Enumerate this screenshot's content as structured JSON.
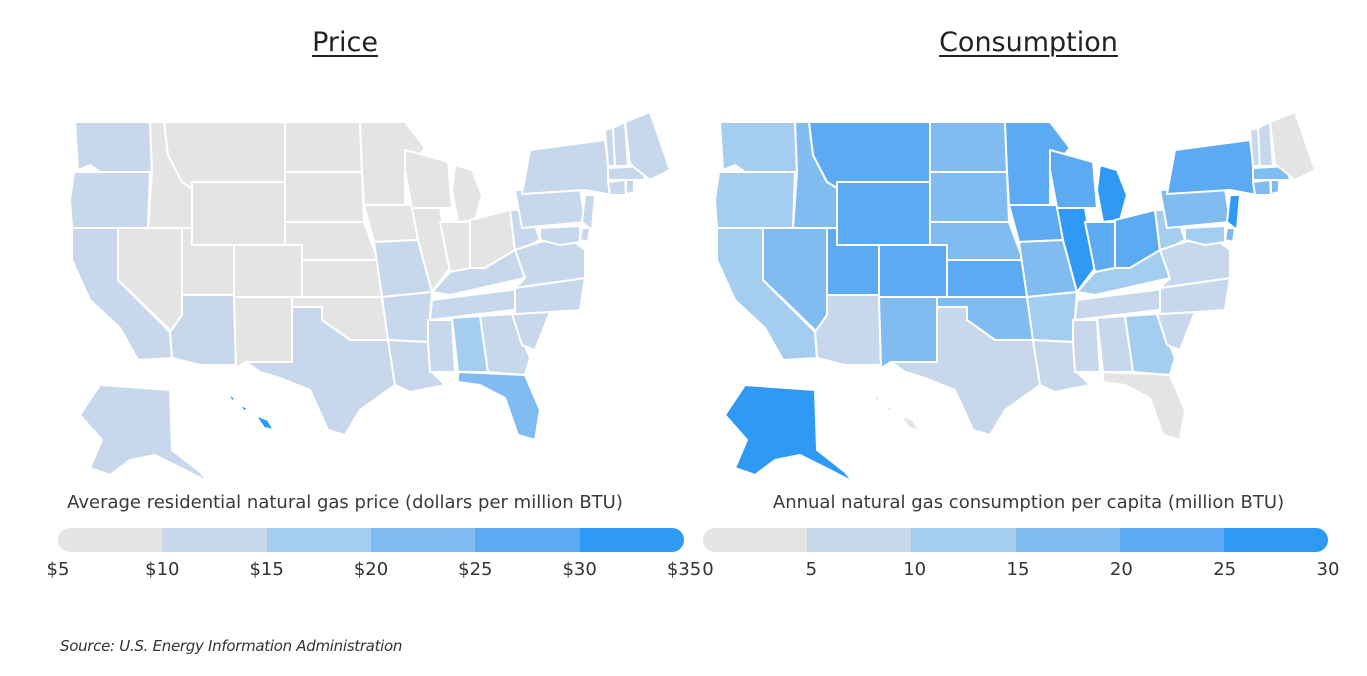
{
  "colors": {
    "scale": [
      "#e4e4e4",
      "#c7d8ec",
      "#a5cdf0",
      "#80bcf0",
      "#5caaf2",
      "#2e9af5"
    ],
    "background": "#ffffff"
  },
  "price": {
    "title": "Price",
    "caption": "Average residential natural gas price (dollars per million BTU)",
    "legend_ticks": [
      "$5",
      "$10",
      "$15",
      "$20",
      "$25",
      "$30",
      "$35"
    ],
    "bins": 6
  },
  "consumption": {
    "title": "Consumption",
    "caption": "Annual natural gas consumption per capita (million BTU)",
    "legend_ticks": [
      "0",
      "5",
      "10",
      "15",
      "20",
      "25",
      "30"
    ],
    "bins": 6
  },
  "map_data": {
    "price_bin_by_state": {
      "WA": 1,
      "OR": 1,
      "CA": 1,
      "NV": 0,
      "ID": 0,
      "MT": 0,
      "WY": 0,
      "UT": 0,
      "AZ": 1,
      "CO": 0,
      "NM": 0,
      "ND": 0,
      "SD": 0,
      "NE": 0,
      "KS": 0,
      "OK": 0,
      "TX": 1,
      "MN": 0,
      "IA": 0,
      "MO": 1,
      "AR": 1,
      "LA": 1,
      "WI": 0,
      "IL": 0,
      "MI": 0,
      "IN": 0,
      "OH": 0,
      "KY": 1,
      "TN": 1,
      "MS": 1,
      "AL": 2,
      "GA": 1,
      "FL": 3,
      "SC": 1,
      "NC": 1,
      "VA": 1,
      "WV": 1,
      "PA": 1,
      "NY": 1,
      "NJ": 1,
      "DE": 1,
      "MD": 1,
      "CT": 1,
      "RI": 1,
      "MA": 1,
      "VT": 1,
      "NH": 1,
      "ME": 1,
      "AK": 1,
      "HI": 5
    },
    "consumption_bin_by_state": {
      "WA": 2,
      "OR": 2,
      "CA": 2,
      "NV": 3,
      "ID": 3,
      "MT": 4,
      "WY": 4,
      "UT": 4,
      "AZ": 1,
      "CO": 4,
      "NM": 3,
      "ND": 3,
      "SD": 3,
      "NE": 3,
      "KS": 4,
      "OK": 3,
      "TX": 1,
      "MN": 4,
      "IA": 4,
      "MO": 3,
      "AR": 2,
      "LA": 1,
      "WI": 4,
      "IL": 5,
      "MI": 5,
      "IN": 4,
      "OH": 4,
      "KY": 2,
      "TN": 1,
      "MS": 1,
      "AL": 1,
      "GA": 2,
      "FL": 0,
      "SC": 1,
      "NC": 1,
      "VA": 1,
      "WV": 2,
      "PA": 3,
      "NY": 4,
      "NJ": 5,
      "DE": 3,
      "MD": 2,
      "CT": 3,
      "RI": 3,
      "MA": 3,
      "VT": 1,
      "NH": 1,
      "ME": 0,
      "AK": 5,
      "HI": 0
    }
  },
  "source": "Source:  U.S. Energy Information Administration"
}
